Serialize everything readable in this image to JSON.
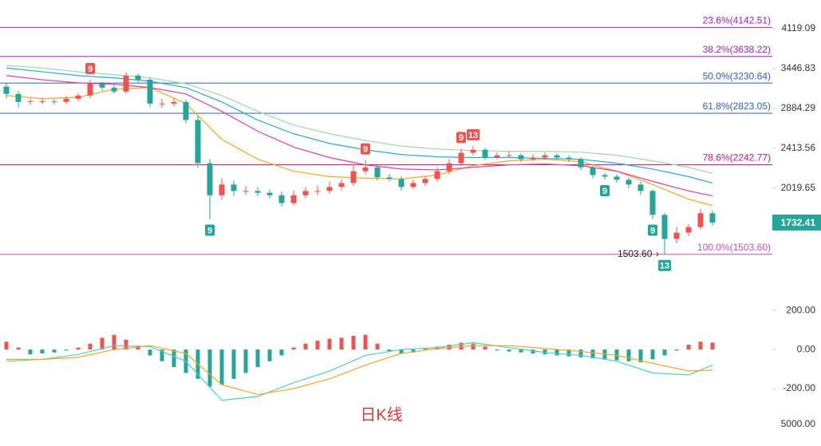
{
  "chart_data": {
    "type": "candlestick",
    "log_scale": true,
    "grid": false,
    "up_color": "#ef5350",
    "down_color": "#26a69a",
    "ylim": [
      1369,
      4682
    ],
    "yticks": [
      4119.09,
      3446.83,
      2884.29,
      2413.56,
      2019.65
    ],
    "opens": [
      3180,
      3077,
      2969,
      2979,
      2979,
      2969,
      3012,
      3056,
      3221,
      3166,
      3110,
      3340,
      3279,
      2948,
      2948,
      2969,
      2739,
      2258,
      1957,
      2053,
      1995,
      1995,
      1979,
      1957,
      1890,
      1957,
      1995,
      1995,
      2031,
      2067,
      2179,
      2217,
      2120,
      2105,
      2031,
      2067,
      2105,
      2179,
      2258,
      2366,
      2398,
      2316,
      2340,
      2340,
      2299,
      2316,
      2340,
      2316,
      2299,
      2217,
      2142,
      2127,
      2097,
      2053,
      1995,
      1793,
      1610,
      1656,
      1698,
      1806
    ],
    "highs": [
      3230,
      3120,
      3010,
      3020,
      3010,
      3050,
      3090,
      3280,
      3250,
      3200,
      3390,
      3370,
      3300,
      3010,
      3020,
      3000,
      2790,
      2300,
      2110,
      2090,
      2040,
      2030,
      2010,
      1990,
      2000,
      2030,
      2040,
      2080,
      2100,
      2250,
      2290,
      2240,
      2150,
      2130,
      2100,
      2130,
      2220,
      2300,
      2410,
      2440,
      2420,
      2370,
      2380,
      2360,
      2350,
      2370,
      2360,
      2340,
      2320,
      2240,
      2160,
      2150,
      2120,
      2080,
      2010,
      1810,
      1700,
      1720,
      1840,
      1830
    ],
    "lows": [
      3020,
      2900,
      2930,
      2940,
      2930,
      2940,
      2980,
      3020,
      3120,
      3080,
      3080,
      3240,
      2900,
      2890,
      2910,
      2700,
      2210,
      1760,
      1920,
      1950,
      1960,
      1950,
      1930,
      1860,
      1870,
      1930,
      1960,
      1970,
      2000,
      2040,
      2150,
      2090,
      2080,
      2000,
      2010,
      2040,
      2080,
      2150,
      2230,
      2340,
      2290,
      2300,
      2310,
      2270,
      2280,
      2290,
      2290,
      2270,
      2190,
      2110,
      2100,
      2070,
      2020,
      1960,
      1760,
      1503.6,
      1580,
      1630,
      1680,
      1710
    ],
    "closes": [
      3077,
      2969,
      2979,
      2979,
      2969,
      3012,
      3056,
      3221,
      3166,
      3110,
      3340,
      3279,
      2948,
      2948,
      2969,
      2739,
      2258,
      1957,
      2053,
      1995,
      1995,
      1979,
      1957,
      1890,
      1957,
      1995,
      1995,
      2031,
      2067,
      2179,
      2217,
      2120,
      2105,
      2031,
      2067,
      2105,
      2179,
      2258,
      2366,
      2398,
      2316,
      2340,
      2340,
      2299,
      2316,
      2340,
      2316,
      2299,
      2217,
      2142,
      2127,
      2097,
      2053,
      1995,
      1793,
      1610,
      1656,
      1698,
      1806,
      1732.41
    ],
    "ma_x": [
      0,
      3,
      6,
      9,
      12,
      15,
      18,
      21,
      24,
      27,
      30,
      33,
      36,
      39,
      42,
      45,
      48,
      51,
      54,
      57,
      59
    ],
    "ma_lines": [
      {
        "color": "#f5a623",
        "values": [
          3056,
          3012,
          3032,
          3143,
          3166,
          2948,
          2511,
          2299,
          2179,
          2127,
          2112,
          2105,
          2142,
          2234,
          2282,
          2299,
          2274,
          2179,
          2053,
          1923,
          1869
        ]
      },
      {
        "color": "#e040a0",
        "values": [
          3340,
          3279,
          3233,
          3213,
          3166,
          3077,
          2847,
          2605,
          2427,
          2316,
          2242,
          2200,
          2192,
          2217,
          2242,
          2250,
          2234,
          2179,
          2082,
          1995,
          1952
        ]
      },
      {
        "color": "#29a8e0",
        "values": [
          3455,
          3398,
          3340,
          3306,
          3258,
          3166,
          2969,
          2739,
          2576,
          2467,
          2398,
          2347,
          2324,
          2316,
          2316,
          2307,
          2299,
          2258,
          2200,
          2127,
          2067
        ]
      },
      {
        "color": "#a5d6a7",
        "values": [
          3496,
          3455,
          3398,
          3352,
          3306,
          3221,
          3056,
          2847,
          2677,
          2576,
          2499,
          2438,
          2406,
          2390,
          2381,
          2381,
          2373,
          2340,
          2282,
          2217,
          2158
        ]
      }
    ],
    "fib_levels": [
      {
        "value": 4142.51,
        "label": "23.6%(4142.51)",
        "color": "#a020c0"
      },
      {
        "value": 3638.22,
        "label": "38.2%(3638.22)",
        "color": "#a020c0"
      },
      {
        "value": 3230.64,
        "label": "50.0%(3230.64)",
        "color": "#2e5fb8"
      },
      {
        "value": 2823.05,
        "label": "61.8%(2823.05)",
        "color": "#2e5fb8"
      },
      {
        "value": 2242.77,
        "label": "78.6%(2242.77)",
        "color": "#c2188f"
      },
      {
        "value": 1503.6,
        "label": "100.0%(1503.60)",
        "color": "#d04fb0"
      }
    ],
    "last_price": 1732.41,
    "low_marker": {
      "value": 1503.6,
      "label": "1503.60"
    },
    "td_marks": [
      {
        "candle": 7,
        "label": "9",
        "side": "above"
      },
      {
        "candle": 30,
        "label": "9",
        "side": "above"
      },
      {
        "candle": 38,
        "label": "9",
        "side": "above"
      },
      {
        "candle": 39,
        "label": "13",
        "side": "above"
      },
      {
        "candle": 17,
        "label": "9",
        "side": "below"
      },
      {
        "candle": 50,
        "label": "9",
        "side": "below"
      },
      {
        "candle": 54,
        "label": "9",
        "side": "below"
      },
      {
        "candle": 55,
        "label": "13",
        "side": "below"
      }
    ],
    "macd": {
      "ylim": [
        -314,
        278
      ],
      "yticks": [
        {
          "value": 200,
          "label": "200.00"
        },
        {
          "value": 0,
          "label": "0.00"
        },
        {
          "value": -200,
          "label": "-200.00"
        }
      ],
      "histogram": [
        40,
        10,
        -25,
        -20,
        -15,
        -5,
        10,
        30,
        60,
        75,
        50,
        20,
        -30,
        -60,
        -90,
        -120,
        -150,
        -190,
        -180,
        -150,
        -120,
        -90,
        -60,
        -30,
        10,
        30,
        45,
        55,
        60,
        70,
        75,
        30,
        -10,
        -20,
        -15,
        5,
        15,
        25,
        35,
        30,
        15,
        -5,
        -10,
        -15,
        -20,
        -25,
        -30,
        -35,
        -40,
        -45,
        -50,
        -55,
        -60,
        -65,
        -50,
        -30,
        -5,
        25,
        40,
        35
      ],
      "dif": {
        "color": "#4dd0c0",
        "values": [
          -60,
          -50,
          -25,
          20,
          15,
          -60,
          -260,
          -240,
          -170,
          -110,
          -30,
          0,
          10,
          35,
          10,
          -15,
          -30,
          -60,
          -120,
          -130,
          -80
        ]
      },
      "dea": {
        "color": "#f5a623",
        "values": [
          -50,
          -50,
          -40,
          0,
          20,
          -20,
          -180,
          -230,
          -200,
          -150,
          -80,
          -20,
          5,
          20,
          20,
          5,
          -10,
          -30,
          -70,
          -110,
          -105
        ]
      }
    },
    "volume_tick": {
      "value": 5000,
      "label": "5000.00"
    },
    "watermark": "日K线"
  }
}
